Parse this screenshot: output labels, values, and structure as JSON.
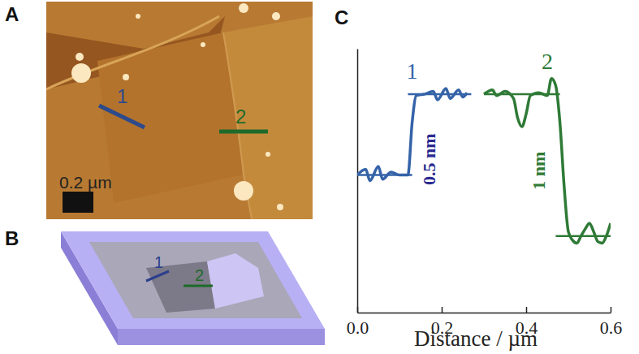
{
  "panel_labels": [
    "A",
    "B",
    "C"
  ],
  "afm_image": {
    "line_labels": [
      "1",
      "2"
    ],
    "scale_bar": "0.2 µm"
  },
  "schematic": {
    "line_labels": [
      "1",
      "2"
    ]
  },
  "chart_data": {
    "type": "line",
    "x_label": "Distance / µm",
    "xlim": [
      0,
      0.6
    ],
    "xticks": [
      {
        "value": 0,
        "label": "0.0"
      },
      0.2,
      0.4,
      0.6
    ],
    "ylim": [
      0,
      1.86
    ],
    "yticks": [],
    "tick_labels": "x",
    "series": [
      {
        "name": "1",
        "color": "#3563a8",
        "x": [
          0,
          0.02,
          0.03,
          0.05,
          0.06,
          0.08,
          0.1,
          0.12,
          0.13,
          0.14,
          0.16,
          0.18,
          0.19,
          0.21,
          0.22,
          0.24,
          0.25,
          0.26
        ],
        "values": [
          0.97,
          1.01,
          0.93,
          1.03,
          0.94,
          0.99,
          0.97,
          0.97,
          1.34,
          1.53,
          1.54,
          1.56,
          1.5,
          1.58,
          1.51,
          1.57,
          1.52,
          1.55
        ],
        "levels": [
          {
            "x": [
              0,
              0.13
            ],
            "y": 0.97
          },
          {
            "x": [
              0.12,
              0.27
            ],
            "y": 1.54
          }
        ]
      },
      {
        "name": "2",
        "color": "#2e7a36",
        "x": [
          0.3,
          0.32,
          0.33,
          0.35,
          0.37,
          0.38,
          0.39,
          0.4,
          0.41,
          0.43,
          0.45,
          0.46,
          0.47,
          0.48,
          0.49,
          0.5,
          0.51,
          0.52,
          0.53,
          0.54,
          0.55,
          0.56,
          0.57,
          0.58,
          0.59,
          0.6
        ],
        "values": [
          1.54,
          1.57,
          1.53,
          1.56,
          1.51,
          1.37,
          1.31,
          1.4,
          1.53,
          1.55,
          1.53,
          1.65,
          1.6,
          1.34,
          0.89,
          0.57,
          0.51,
          0.49,
          0.54,
          0.59,
          0.63,
          0.57,
          0.5,
          0.49,
          0.54,
          0.63
        ],
        "levels": [
          {
            "x": [
              0.3,
              0.48
            ],
            "y": 1.54
          },
          {
            "x": [
              0.47,
              0.6
            ],
            "y": 0.54
          }
        ]
      }
    ],
    "annotations": [
      {
        "text": "0.5 nm",
        "x": 0.175,
        "y": 1.08,
        "color": "#2a2a90"
      },
      {
        "text": "1 nm",
        "x": 0.435,
        "y": 1.0,
        "color": "#2e7a36"
      }
    ]
  }
}
